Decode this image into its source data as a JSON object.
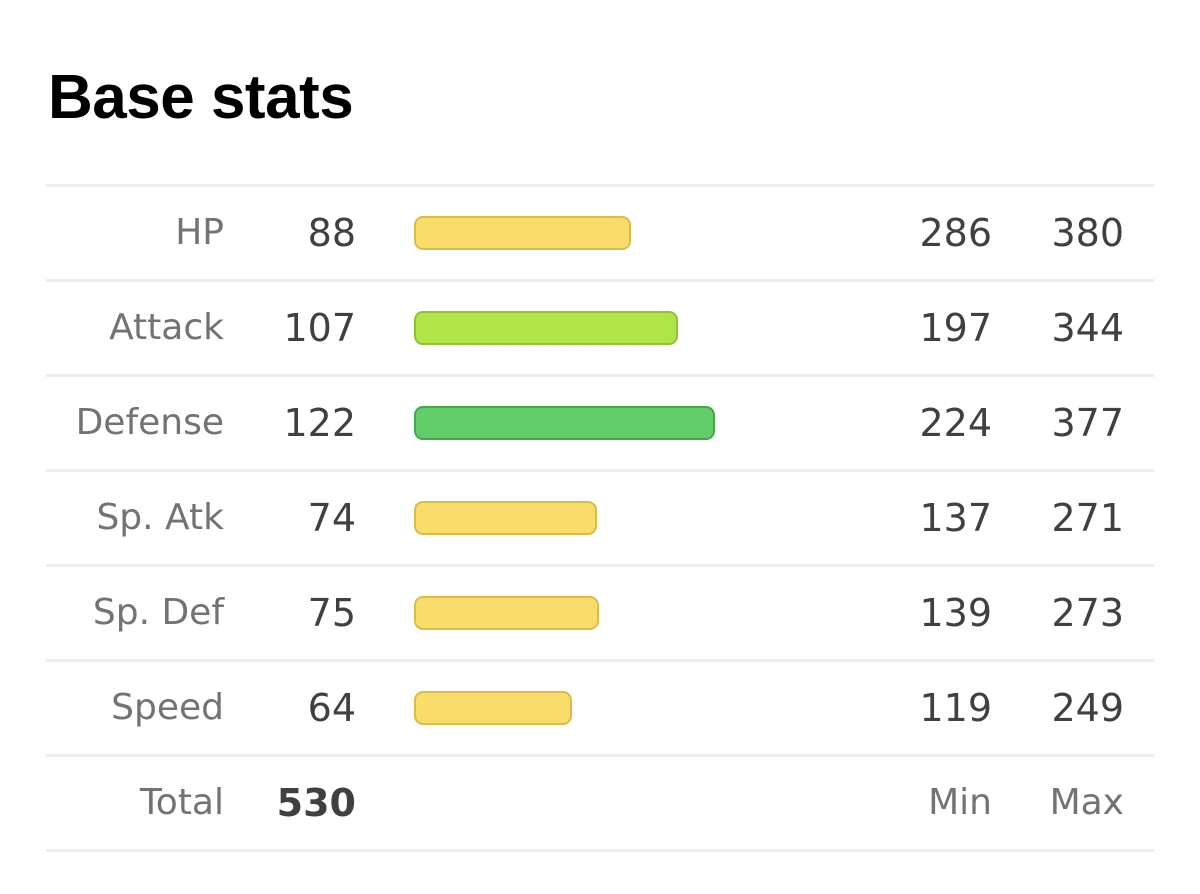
{
  "title": "Base stats",
  "stats": [
    {
      "label": "HP",
      "base": "88",
      "min": "286",
      "max": "380",
      "bar_value": 88,
      "bar_color": "#f8dd6b",
      "bar_border": "#d9bc4a"
    },
    {
      "label": "Attack",
      "base": "107",
      "min": "197",
      "max": "344",
      "bar_value": 107,
      "bar_color": "#b0e54a",
      "bar_border": "#8fc22e"
    },
    {
      "label": "Defense",
      "base": "122",
      "min": "224",
      "max": "377",
      "bar_value": 122,
      "bar_color": "#62cd6a",
      "bar_border": "#43a84c"
    },
    {
      "label": "Sp. Atk",
      "base": "74",
      "min": "137",
      "max": "271",
      "bar_value": 74,
      "bar_color": "#f8dd6b",
      "bar_border": "#d9bc4a"
    },
    {
      "label": "Sp. Def",
      "base": "75",
      "min": "139",
      "max": "273",
      "bar_value": 75,
      "bar_color": "#f8dd6b",
      "bar_border": "#d9bc4a"
    },
    {
      "label": "Speed",
      "base": "64",
      "min": "119",
      "max": "249",
      "bar_value": 64,
      "bar_color": "#f8dd6b",
      "bar_border": "#d9bc4a"
    }
  ],
  "total": {
    "label": "Total",
    "value": "530",
    "min_label": "Min",
    "max_label": "Max"
  }
}
